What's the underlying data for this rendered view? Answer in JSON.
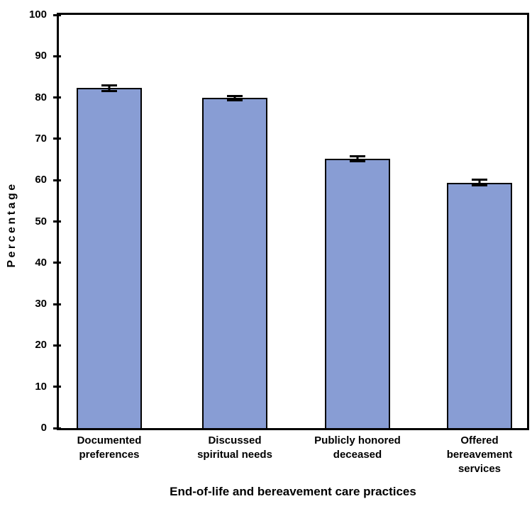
{
  "figure": {
    "background": "#FFFFFF"
  },
  "chart_data": {
    "type": "bar",
    "title": "",
    "xlabel": "End-of-life and bereavement care practices",
    "ylabel": "Percentage",
    "categories": [
      "Documented\npreferences",
      "Discussed\nspiritual needs",
      "Publicly honored\ndeceased",
      "Offered\nbereavement\nservices"
    ],
    "values": [
      82.3,
      79.9,
      65.1,
      59.4
    ],
    "error_margins": [
      0.7,
      0.5,
      0.6,
      0.7
    ],
    "ylim": [
      0,
      100
    ],
    "ytick_step": 10,
    "yticks": [
      0,
      10,
      20,
      30,
      40,
      50,
      60,
      70,
      80,
      90,
      100
    ],
    "grid": false,
    "legend_position": null,
    "bar_fill_color": "#889DD4",
    "bar_border_color": "#000000",
    "axis_color": "#000000"
  }
}
